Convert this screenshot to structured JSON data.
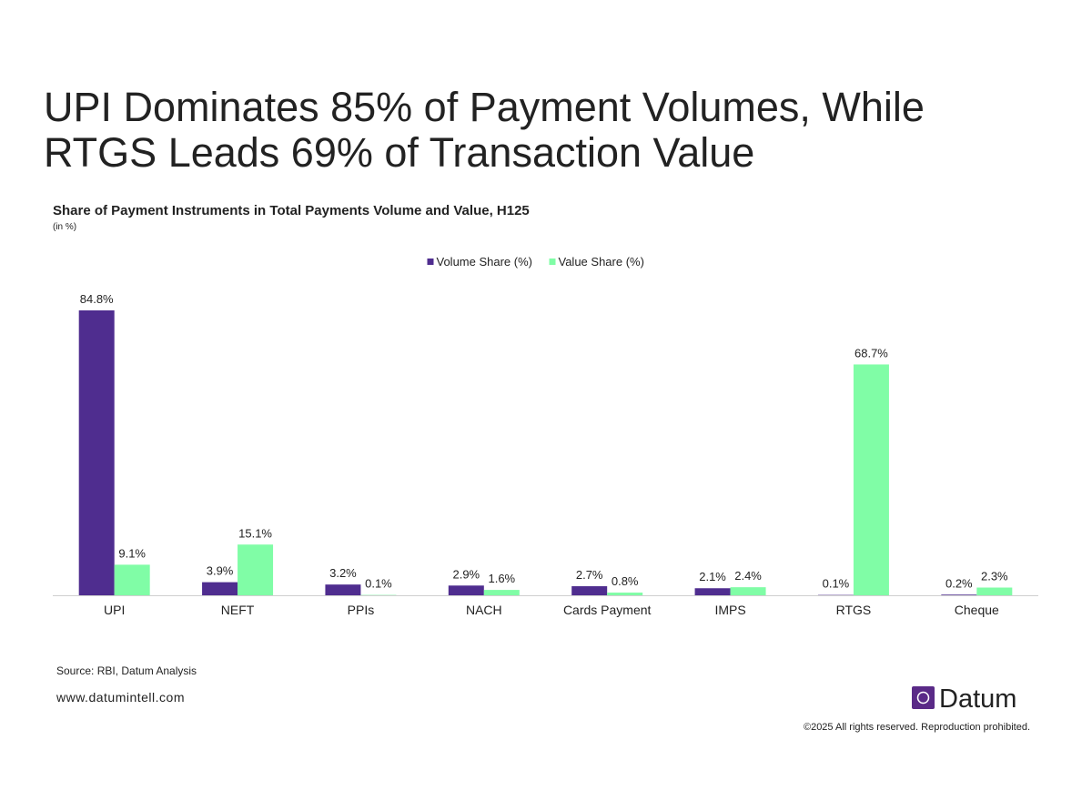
{
  "chart_data": {
    "type": "bar",
    "title": [
      "UPI Dominates 85% of Payment Volumes, While",
      "RTGS Leads 69% of Transaction Value"
    ],
    "subtitle": "Share of Payment Instruments in Total Payments Volume and Value, H125",
    "unit_note": "(in %)",
    "categories": [
      "UPI",
      "NEFT",
      "PPIs",
      "NACH",
      "Cards Payment",
      "IMPS",
      "RTGS",
      "Cheque"
    ],
    "series": [
      {
        "name": "Volume Share (%)",
        "color": "#4f2d8f",
        "values": [
          84.8,
          3.9,
          3.2,
          2.9,
          2.7,
          2.1,
          0.1,
          0.2
        ],
        "value_labels": [
          "84.8%",
          "3.9%",
          "3.2%",
          "2.9%",
          "2.7%",
          "2.1%",
          "0.1%",
          "0.2%"
        ]
      },
      {
        "name": "Value Share (%)",
        "color": "#80fda6",
        "values": [
          9.1,
          15.1,
          0.1,
          1.6,
          0.8,
          2.4,
          68.7,
          2.3
        ],
        "value_labels": [
          "9.1%",
          "15.1%",
          "0.1%",
          "1.6%",
          "0.8%",
          "2.4%",
          "68.7%",
          "2.3%"
        ]
      }
    ],
    "legend": "top",
    "grid": false,
    "source": "Source: RBI, Datum Analysis",
    "website": "www.datumintell.com",
    "brand": "Datum",
    "copyright": "©2025 All rights reserved. Reproduction prohibited."
  }
}
